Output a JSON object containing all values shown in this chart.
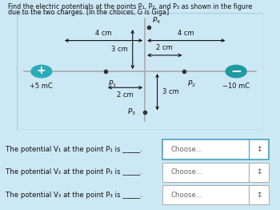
{
  "title_line1": "Find the electric potentials at the points P₁, P₂, and P₃ as shown in the figure",
  "title_line2": "due to the two charges. [In the choices, G is Giga]",
  "bg_color": "#cde8f5",
  "diagram_bg": "#eaf4fb",
  "diagram_border": "#aaccdd",
  "q1_label": "+5 mC",
  "q2_label": "−10 mC",
  "q1_color": "#2aacb8",
  "q2_color": "#1e9aa0",
  "axis_color": "#aaaaaa",
  "bottom_text": [
    "The potential V₁ at the point P₁ is _____.",
    "The potential V₂ at the point P₂ is _____.",
    "The potential V₃ at the point P₃ is _____."
  ],
  "choose_label": "Choose...",
  "choose_border_active": "#4a9fc0",
  "choose_border_inactive": "#aaaaaa",
  "text_color": "#111111",
  "point_color": "#333333",
  "dim_color": "#111111"
}
